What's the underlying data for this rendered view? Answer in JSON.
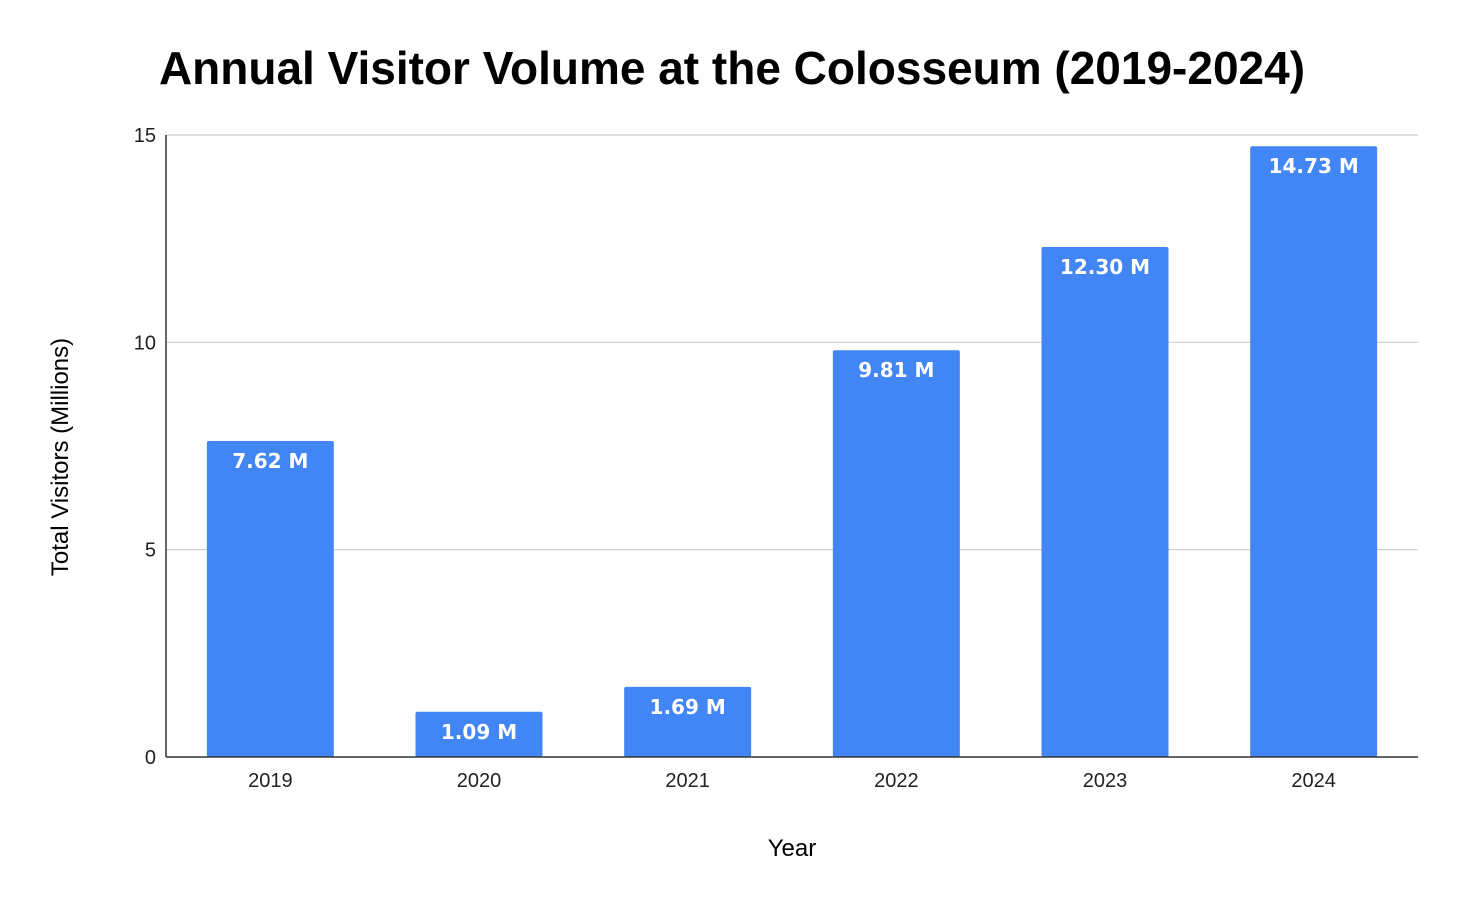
{
  "chart_data": {
    "type": "bar",
    "title": "Annual Visitor Volume at the Colosseum (2019-2024)",
    "xlabel": "Year",
    "ylabel": "Total Visitors (Millions)",
    "categories": [
      "2019",
      "2020",
      "2021",
      "2022",
      "2023",
      "2024"
    ],
    "values": [
      7.62,
      1.09,
      1.69,
      9.81,
      12.3,
      14.73
    ],
    "data_labels": [
      "7.62 M",
      "1.09 M",
      "1.69 M",
      "9.81 M",
      "12.30 M",
      "14.73 M"
    ],
    "ylim": [
      0,
      15
    ],
    "yticks": [
      0,
      5,
      10,
      15
    ],
    "ytick_labels": [
      "0",
      "5",
      "10",
      "15"
    ],
    "grid": true,
    "legend": "none",
    "colors": {
      "bar": "#4285F4",
      "bar_label": "#ffffff",
      "grid": "#cccccc",
      "axis": "#333333"
    }
  }
}
